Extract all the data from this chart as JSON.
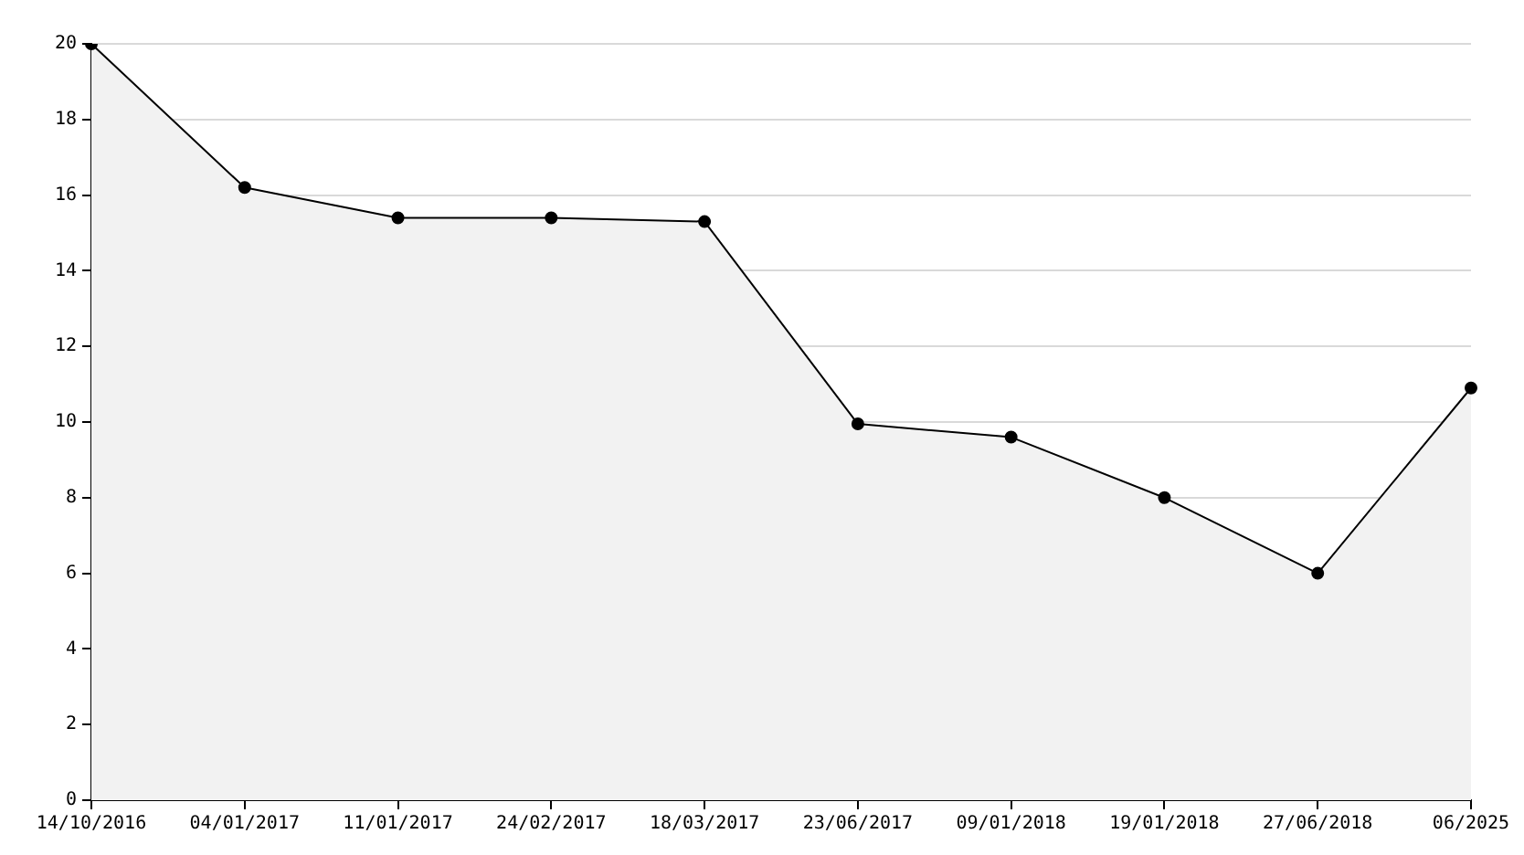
{
  "chart_data": {
    "type": "area",
    "categories": [
      "14/10/2016",
      "04/01/2017",
      "11/01/2017",
      "24/02/2017",
      "18/03/2017",
      "23/06/2017",
      "09/01/2018",
      "19/01/2018",
      "27/06/2018",
      "06/2025"
    ],
    "series": [
      {
        "color": "#000000",
        "values": [
          20,
          16.2,
          15.4,
          15.4,
          15.3,
          9.95,
          9.6,
          8,
          6,
          10.9
        ]
      }
    ],
    "ylim": [
      0,
      20
    ],
    "yticks": [
      0,
      2,
      4,
      6,
      8,
      10,
      12,
      14,
      16,
      18,
      20
    ],
    "grid": "y",
    "legend": false,
    "marker": "circle",
    "line_style": "solid"
  }
}
